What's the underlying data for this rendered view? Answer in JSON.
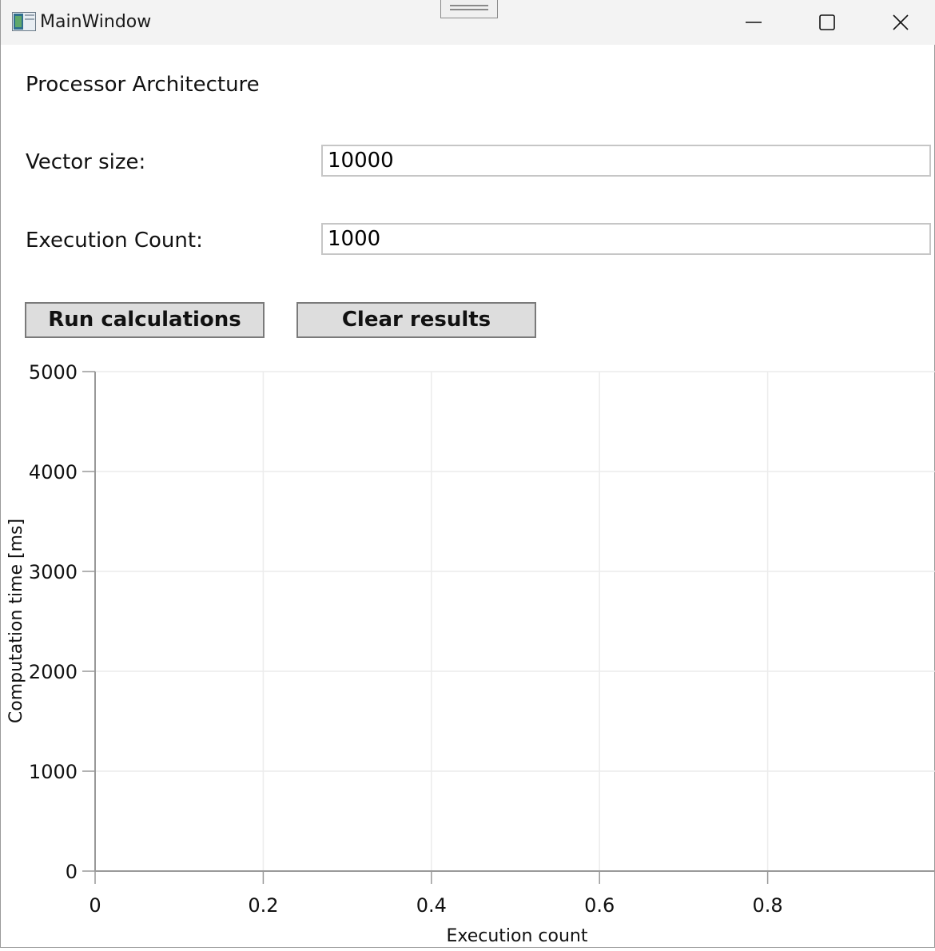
{
  "window": {
    "title": "MainWindow",
    "controls": [
      "minimize-icon",
      "maximize-icon",
      "close-icon"
    ]
  },
  "form": {
    "architecture_label": "Processor Architecture",
    "vector_size_label": "Vector size:",
    "vector_size_value": "10000",
    "execution_count_label": "Execution Count:",
    "execution_count_value": "1000",
    "run_button": "Run calculations",
    "clear_button": "Clear results"
  },
  "chart_data": {
    "type": "line",
    "series": [],
    "xlabel": "Execution count",
    "ylabel": "Computation time [ms]",
    "xlim": [
      0,
      1
    ],
    "ylim": [
      0,
      5000
    ],
    "xticks": [
      0,
      0.2,
      0.4,
      0.6,
      0.8
    ],
    "yticks": [
      0,
      1000,
      2000,
      3000,
      4000,
      5000
    ],
    "xtick_labels": [
      "0",
      "0.2",
      "0.4",
      "0.6",
      "0.8"
    ],
    "ytick_labels": [
      "0",
      "1000",
      "2000",
      "3000",
      "4000",
      "5000"
    ],
    "grid": true,
    "colors": {
      "grid": "#ececec",
      "axis": "#999999"
    }
  }
}
